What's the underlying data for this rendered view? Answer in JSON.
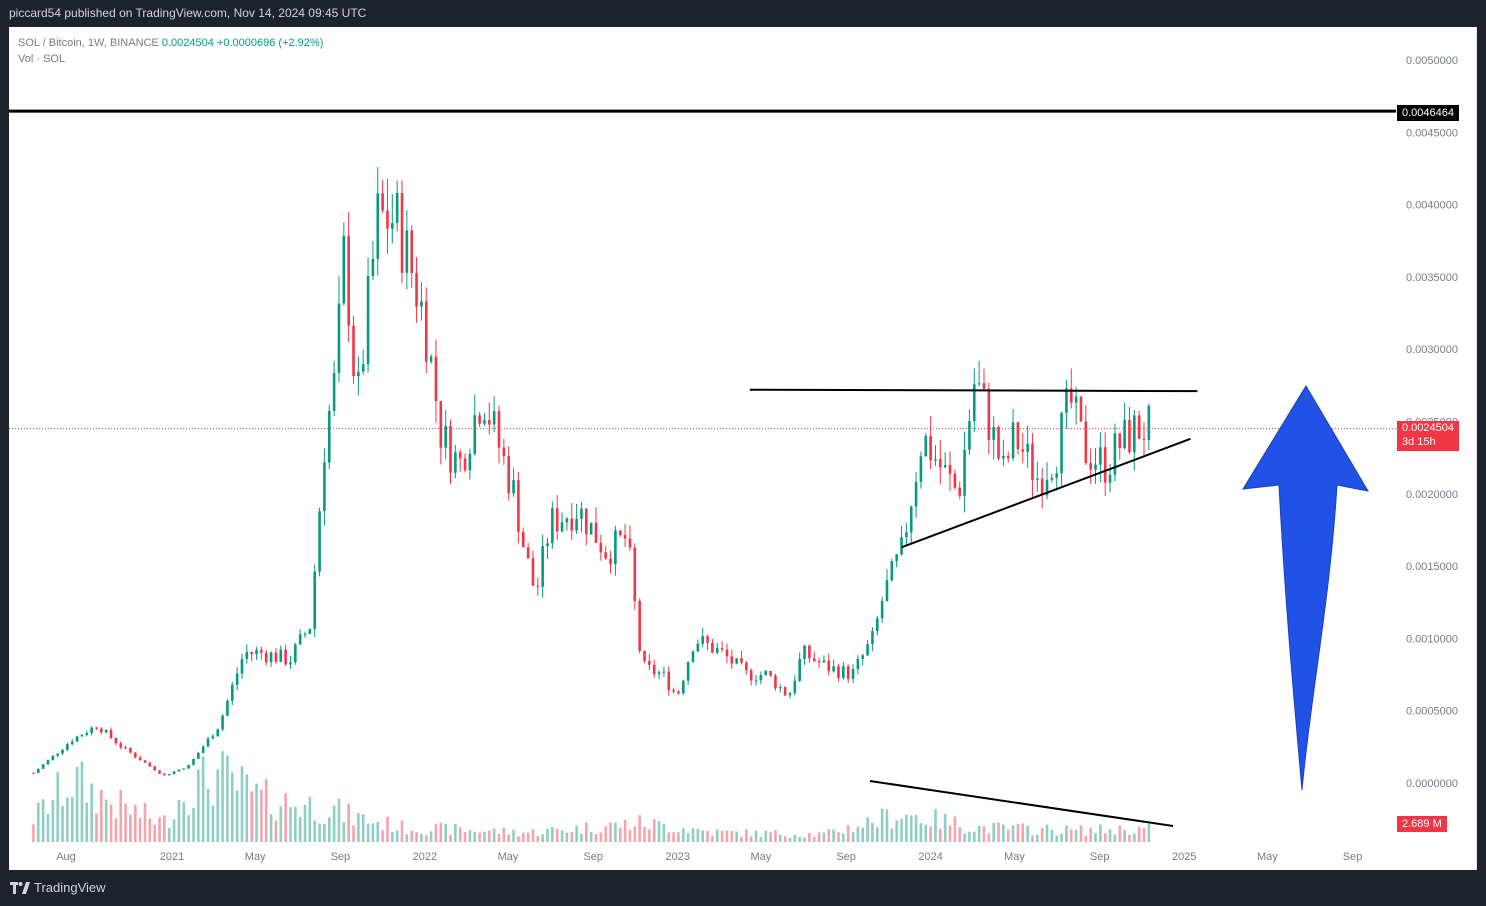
{
  "header": {
    "published": "piccard54 published on TradingView.com, Nov 14, 2024 09:45 UTC"
  },
  "footer": {
    "brand": "TradingView",
    "logo_icon": "tradingview-logo-icon"
  },
  "legend": {
    "symbol": "SOL / Bitcoin, 1W, BINANCE",
    "price": "0.0024504",
    "change": "+0.0000696 (+2.92%)",
    "volume_label": "Vol · SOL"
  },
  "price_axis": {
    "ticks": [
      "0.0050000",
      "0.0045000",
      "0.0040000",
      "0.0035000",
      "0.0030000",
      "0.0025000",
      "0.0020000",
      "0.0015000",
      "0.0010000",
      "0.0005000",
      "0.0000000"
    ],
    "ath_label": "0.0046464",
    "last_price_label": "0.0024504",
    "countdown_label": "3d 15h",
    "volume_label": "2.689 M"
  },
  "time_axis": {
    "ticks": [
      "Aug",
      "2021",
      "May",
      "Sep",
      "2022",
      "May",
      "Sep",
      "2023",
      "May",
      "Sep",
      "2024",
      "May",
      "Sep",
      "2025",
      "May",
      "Sep"
    ]
  },
  "colors": {
    "up": "#089981",
    "down": "#f23645",
    "up_vol": "#8fcfc3",
    "down_vol": "#f4a4ab",
    "arrow": "#2152e6",
    "line": "#000000"
  },
  "chart_data": {
    "type": "candlestick",
    "symbol": "SOL / Bitcoin",
    "interval": "1W",
    "exchange": "BINANCE",
    "ylim": [
      0.0,
      0.0051
    ],
    "all_time_high_line": 0.0046464,
    "last_price": 0.0024504,
    "trendlines": [
      {
        "name": "resistance",
        "from": [
          "2023-04-15",
          0.00272
        ],
        "to": [
          "2025-01-20",
          0.00271
        ]
      },
      {
        "name": "rising-support",
        "from": [
          "2023-11-20",
          0.00163
        ],
        "to": [
          "2025-01-10",
          0.00238
        ]
      },
      {
        "name": "volume-divergence",
        "from": [
          "2023-11-10",
          0.0
        ],
        "to": [
          "2025-01-01",
          0.0
        ]
      }
    ],
    "annotation": "blue up arrow",
    "anchors": [
      [
        "2020-06-15",
        7e-05
      ],
      [
        "2020-08-10",
        0.0003
      ],
      [
        "2020-09-15",
        0.0004
      ],
      [
        "2020-10-20",
        0.00025
      ],
      [
        "2020-12-20",
        5e-05
      ],
      [
        "2021-01-25",
        0.00012
      ],
      [
        "2021-03-10",
        0.0004
      ],
      [
        "2021-04-15",
        0.0009
      ],
      [
        "2021-05-10",
        0.0009
      ],
      [
        "2021-06-20",
        0.00085
      ],
      [
        "2021-07-20",
        0.0011
      ],
      [
        "2021-08-10",
        0.0024
      ],
      [
        "2021-08-25",
        0.0028
      ],
      [
        "2021-09-07",
        0.0037
      ],
      [
        "2021-09-25",
        0.0026
      ],
      [
        "2021-10-25",
        0.0039
      ],
      [
        "2021-11-20",
        0.0039
      ],
      [
        "2021-12-10",
        0.0036
      ],
      [
        "2022-01-01",
        0.0032
      ],
      [
        "2022-01-25",
        0.0024
      ],
      [
        "2022-02-20",
        0.0022
      ],
      [
        "2022-03-25",
        0.0027
      ],
      [
        "2022-04-20",
        0.0023
      ],
      [
        "2022-05-10",
        0.002
      ],
      [
        "2022-05-25",
        0.0016
      ],
      [
        "2022-06-10",
        0.0013
      ],
      [
        "2022-07-01",
        0.0018
      ],
      [
        "2022-08-10",
        0.0019
      ],
      [
        "2022-09-20",
        0.0016
      ],
      [
        "2022-10-20",
        0.0017
      ],
      [
        "2022-11-10",
        0.0008
      ],
      [
        "2022-12-10",
        0.00075
      ],
      [
        "2022-12-31",
        0.0006
      ],
      [
        "2023-01-25",
        0.001
      ],
      [
        "2023-03-05",
        0.0009
      ],
      [
        "2023-04-10",
        0.00075
      ],
      [
        "2023-05-10",
        0.00075
      ],
      [
        "2023-06-10",
        0.0006
      ],
      [
        "2023-06-30",
        0.0009
      ],
      [
        "2023-08-05",
        0.0008
      ],
      [
        "2023-09-10",
        0.00075
      ],
      [
        "2023-10-10",
        0.001
      ],
      [
        "2023-10-25",
        0.0013
      ],
      [
        "2023-11-20",
        0.0016
      ],
      [
        "2023-12-20",
        0.0024
      ],
      [
        "2024-01-20",
        0.00215
      ],
      [
        "2024-02-10",
        0.002
      ],
      [
        "2024-03-05",
        0.0028
      ],
      [
        "2024-03-25",
        0.0025
      ],
      [
        "2024-04-15",
        0.00215
      ],
      [
        "2024-05-01",
        0.0024
      ],
      [
        "2024-06-05",
        0.0021
      ],
      [
        "2024-07-01",
        0.0023
      ],
      [
        "2024-07-20",
        0.00265
      ],
      [
        "2024-08-10",
        0.0023
      ],
      [
        "2024-09-10",
        0.0022
      ],
      [
        "2024-10-01",
        0.00235
      ],
      [
        "2024-10-25",
        0.00245
      ],
      [
        "2024-11-14",
        0.00245
      ]
    ],
    "volume_anchors": [
      [
        "2020-06-15",
        0.25
      ],
      [
        "2020-08-10",
        0.65
      ],
      [
        "2020-10-10",
        0.4
      ],
      [
        "2020-12-20",
        0.2
      ],
      [
        "2021-01-20",
        0.55
      ],
      [
        "2021-03-10",
        0.7
      ],
      [
        "2021-05-10",
        0.45
      ],
      [
        "2021-08-20",
        0.35
      ],
      [
        "2021-09-10",
        0.28
      ],
      [
        "2021-12-01",
        0.15
      ],
      [
        "2022-06-01",
        0.1
      ],
      [
        "2022-11-10",
        0.2
      ],
      [
        "2023-03-01",
        0.1
      ],
      [
        "2023-08-01",
        0.08
      ],
      [
        "2023-11-20",
        0.3
      ],
      [
        "2024-03-10",
        0.15
      ],
      [
        "2024-08-01",
        0.12
      ],
      [
        "2024-11-14",
        0.14
      ]
    ]
  }
}
